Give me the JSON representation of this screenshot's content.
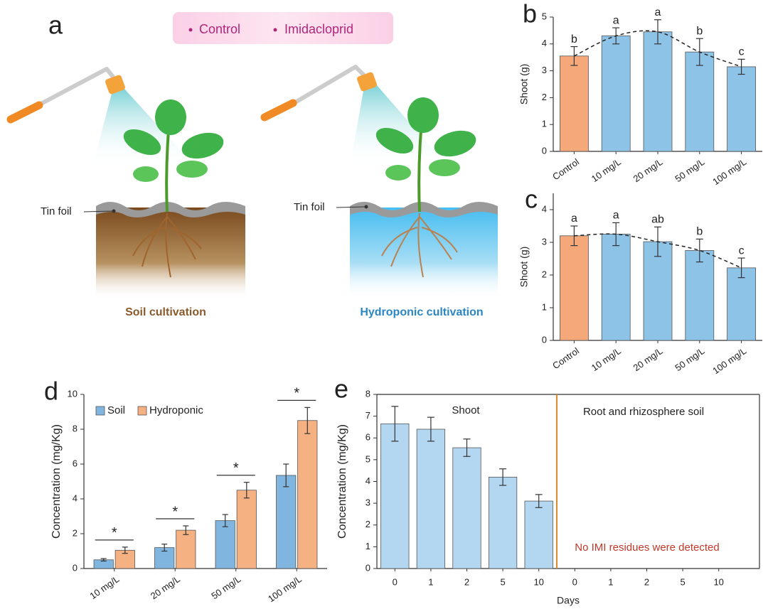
{
  "panel_a": {
    "label": "a",
    "legend": [
      "Control",
      "Imidacloprid"
    ],
    "tin_foil": [
      "Tin foil",
      "Tin foil"
    ],
    "captions": [
      "Soil cultivation",
      "Hydroponic cultivation"
    ]
  },
  "chart_data": [
    {
      "type": "bar",
      "panel_label": "b",
      "y_label": "Shoot (g)",
      "categories": [
        "Control",
        "10 mg/L",
        "20 mg/L",
        "50 mg/L",
        "100 mg/L"
      ],
      "values": [
        3.55,
        4.3,
        4.45,
        3.7,
        3.15
      ],
      "errors": [
        0.35,
        0.3,
        0.45,
        0.5,
        0.28
      ],
      "labels": [
        "b",
        "a",
        "a",
        "b",
        "c"
      ],
      "colors": [
        "#f5a97a",
        "#8ec3e8",
        "#8ec3e8",
        "#8ec3e8",
        "#8ec3e8"
      ],
      "ylim": [
        0,
        5
      ],
      "yticks": [
        0,
        1,
        2,
        3,
        4,
        5
      ],
      "trend_line": "dashed"
    },
    {
      "type": "bar",
      "panel_label": "c",
      "y_label": "Shoot (g)",
      "categories": [
        "Control",
        "10 mg/L",
        "20 mg/L",
        "50 mg/L",
        "100 mg/L"
      ],
      "values": [
        3.2,
        3.25,
        3.02,
        2.75,
        2.22
      ],
      "errors": [
        0.3,
        0.35,
        0.45,
        0.35,
        0.3
      ],
      "labels": [
        "a",
        "a",
        "ab",
        "b",
        "c"
      ],
      "colors": [
        "#f5a97a",
        "#8ec3e8",
        "#8ec3e8",
        "#8ec3e8",
        "#8ec3e8"
      ],
      "ylim": [
        0,
        4.5
      ],
      "yticks": [
        0,
        1,
        2,
        3,
        4
      ],
      "trend_line": "dashed"
    },
    {
      "type": "bar",
      "panel_label": "d",
      "y_label": "Concentration (mg/Kg)",
      "categories": [
        "10 mg/L",
        "20 mg/L",
        "50 mg/L",
        "100 mg/L"
      ],
      "series": [
        {
          "name": "Soil",
          "color": "#7fb5de",
          "values": [
            0.5,
            1.2,
            2.75,
            5.35
          ],
          "errors": [
            0.07,
            0.2,
            0.35,
            0.65
          ]
        },
        {
          "name": "Hydroponic",
          "color": "#f6b183",
          "values": [
            1.05,
            2.2,
            4.5,
            8.5
          ],
          "errors": [
            0.18,
            0.25,
            0.45,
            0.75
          ]
        }
      ],
      "significance": [
        "*",
        "*",
        "*",
        "*"
      ],
      "ylim": [
        0,
        10
      ],
      "yticks": [
        0,
        2,
        4,
        6,
        8,
        10
      ],
      "legend": "upper left"
    },
    {
      "type": "bar",
      "panel_label": "e",
      "y_label": "Concentration (mg/Kg)",
      "x_label": "Days",
      "categories": [
        "0",
        "1",
        "2",
        "5",
        "10",
        "0",
        "1",
        "2",
        "5",
        "10"
      ],
      "values": [
        6.65,
        6.4,
        5.55,
        4.2,
        3.1,
        null,
        null,
        null,
        null,
        null
      ],
      "errors": [
        0.8,
        0.55,
        0.4,
        0.38,
        0.3,
        null,
        null,
        null,
        null,
        null
      ],
      "color": "#b3d7f0",
      "annotations": [
        "Shoot",
        "Root and rhizosphere soil",
        "No IMI residues were detected"
      ],
      "ylim": [
        0,
        8
      ],
      "yticks": [
        0,
        1,
        2,
        3,
        4,
        5,
        6,
        7,
        8
      ],
      "frame": true
    }
  ]
}
